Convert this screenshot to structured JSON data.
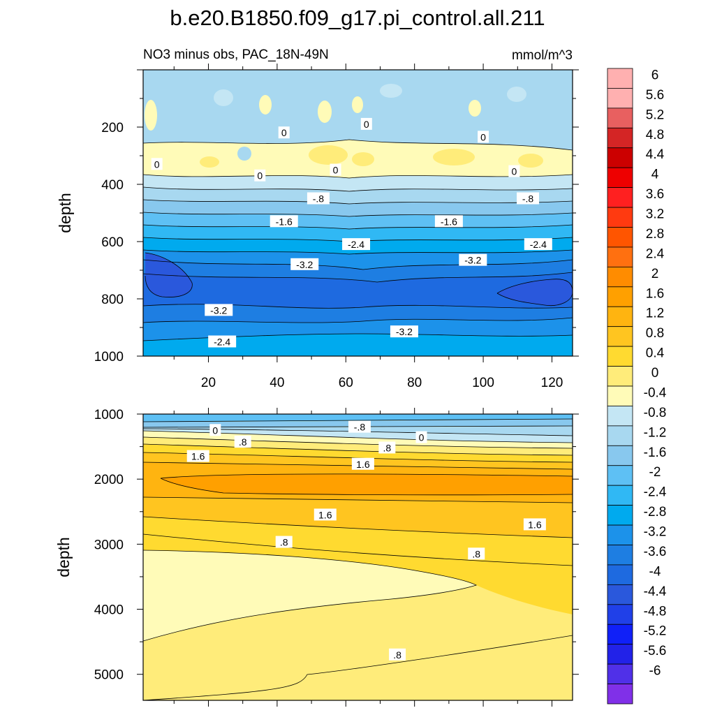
{
  "figure": {
    "title": "b.e20.B1850.f09_g17.pi_control.all.211",
    "subtitle_left": "NO3 minus obs, PAC_18N-49N",
    "subtitle_right": "mmol/m^3"
  },
  "colorbar": {
    "labels": [
      "6",
      "5.6",
      "5.2",
      "4.8",
      "4.4",
      "4",
      "3.6",
      "3.2",
      "2.8",
      "2.4",
      "2",
      "1.6",
      "1.2",
      "0.8",
      "0.4",
      "0",
      "-0.4",
      "-0.8",
      "-1.2",
      "-1.6",
      "-2",
      "-2.4",
      "-2.8",
      "-3.2",
      "-3.6",
      "-4",
      "-4.4",
      "-4.8",
      "-5.2",
      "-5.6",
      "-6"
    ],
    "colors": [
      "#ffb0b0",
      "#e86060",
      "#d42525",
      "#cc0000",
      "#ee0000",
      "#ff2020",
      "#ff3a10",
      "#ff5500",
      "#ff7010",
      "#ff8c00",
      "#ffa000",
      "#ffb410",
      "#ffc520",
      "#ffda30",
      "#ffec7a",
      "#fffbb8",
      "#c4e6f4",
      "#a8d8f0",
      "#88c8ee",
      "#5ec0f4",
      "#30b8f4",
      "#00aaee",
      "#1c92ea",
      "#1e7ee2",
      "#1e6ae0",
      "#2a58dc",
      "#2040e8",
      "#1020f8",
      "#2222e8",
      "#5030e8",
      "#8030e8"
    ]
  },
  "chart_data": [
    {
      "type": "contour",
      "panel": "upper",
      "ylabel": "depth",
      "xlabel": "",
      "xlim": [
        1,
        126
      ],
      "ylim": [
        1000,
        0
      ],
      "x_ticks": [
        "20",
        "40",
        "60",
        "80",
        "100",
        "120"
      ],
      "y_ticks": [
        "200",
        "400",
        "600",
        "800",
        "1000"
      ],
      "contour_labels": [
        {
          "text": "0",
          "x": 66,
          "y": 190
        },
        {
          "text": "0",
          "x": 42,
          "y": 220
        },
        {
          "text": "0",
          "x": 100,
          "y": 235
        },
        {
          "text": "0",
          "x": 5,
          "y": 330
        },
        {
          "text": "0",
          "x": 57,
          "y": 350
        },
        {
          "text": "0",
          "x": 109,
          "y": 355
        },
        {
          "text": "0",
          "x": 35,
          "y": 370
        },
        {
          "text": "-.8",
          "x": 52,
          "y": 450
        },
        {
          "text": "-.8",
          "x": 113,
          "y": 450
        },
        {
          "text": "-1.6",
          "x": 42,
          "y": 530
        },
        {
          "text": "-1.6",
          "x": 90,
          "y": 530
        },
        {
          "text": "-2.4",
          "x": 63,
          "y": 610
        },
        {
          "text": "-2.4",
          "x": 116,
          "y": 610
        },
        {
          "text": "-3.2",
          "x": 48,
          "y": 680
        },
        {
          "text": "-3.2",
          "x": 97,
          "y": 665
        },
        {
          "text": "-3.2",
          "x": 23,
          "y": 840
        },
        {
          "text": "-3.2",
          "x": 77,
          "y": 915
        },
        {
          "text": "-2.4",
          "x": 24,
          "y": 950
        }
      ]
    },
    {
      "type": "contour",
      "panel": "lower",
      "ylabel": "depth",
      "xlabel": "",
      "xlim": [
        1,
        126
      ],
      "ylim": [
        5400,
        1000
      ],
      "x_ticks": [],
      "y_ticks": [
        "1000",
        "2000",
        "3000",
        "4000",
        "5000"
      ],
      "contour_labels": [
        {
          "text": "0",
          "x": 22,
          "y": 1250
        },
        {
          "text": "-.8",
          "x": 64,
          "y": 1200
        },
        {
          "text": "0",
          "x": 82,
          "y": 1360
        },
        {
          "text": ".8",
          "x": 30,
          "y": 1430
        },
        {
          "text": ".8",
          "x": 72,
          "y": 1520
        },
        {
          "text": "1.6",
          "x": 17,
          "y": 1650
        },
        {
          "text": "1.6",
          "x": 65,
          "y": 1770
        },
        {
          "text": "1.6",
          "x": 54,
          "y": 2550
        },
        {
          "text": "1.6",
          "x": 115,
          "y": 2700
        },
        {
          "text": ".8",
          "x": 42,
          "y": 2970
        },
        {
          "text": ".8",
          "x": 98,
          "y": 3150
        },
        {
          "text": ".8",
          "x": 75,
          "y": 4700
        }
      ]
    }
  ]
}
